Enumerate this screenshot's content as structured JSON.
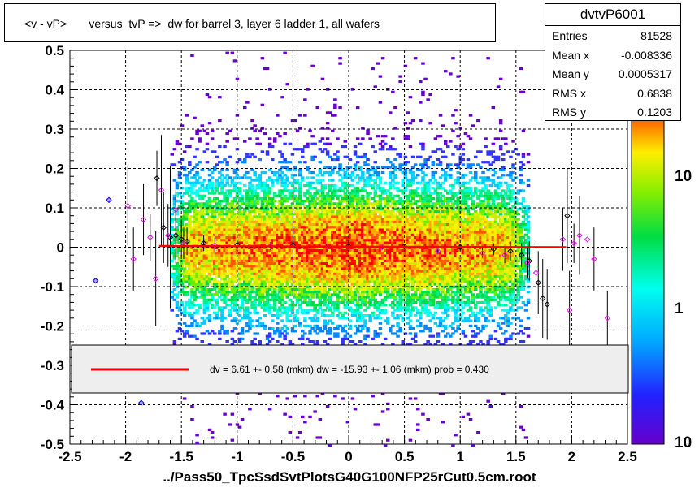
{
  "title": "<v - vP>       versus  tvP =>  dw for barrel 3, layer 6 ladder 1, all wafers",
  "stats": {
    "name": "dvtvP6001",
    "rows": [
      {
        "label": "Entries",
        "value": "81528"
      },
      {
        "label": "Mean x",
        "value": "-0.008336"
      },
      {
        "label": "Mean y",
        "value": "0.0005317"
      },
      {
        "label": "RMS x",
        "value": "0.6838"
      },
      {
        "label": "RMS y",
        "value": "0.1203"
      }
    ]
  },
  "fit_legend": "dv =    6.61 +-  0.58 (mkm) dw =  -15.93 +-  1.06 (mkm) prob = 0.430",
  "footer": "../Pass50_TpcSsdSvtPlotsG40G100NFP25rCut0.5cm.root",
  "chart_data": {
    "type": "heatmap",
    "xlim": [
      -2.5,
      2.5
    ],
    "ylim": [
      -0.5,
      0.5
    ],
    "x_ticks": [
      "-2.5",
      "-2",
      "-1.5",
      "-1",
      "-0.5",
      "0",
      "0.5",
      "1",
      "1.5",
      "2",
      "2.5"
    ],
    "y_ticks": [
      "-0.5",
      "-0.4",
      "-0.3",
      "-0.2",
      "-0.1",
      "0",
      "0.1",
      "0.2",
      "0.3",
      "0.4",
      "0.5"
    ],
    "grid": true,
    "color_scale": "log",
    "colorbar_labels": [
      "10",
      "1",
      "10"
    ],
    "fit_line": {
      "x": [
        -1.7,
        1.95
      ],
      "y": [
        0.003,
        0.0
      ],
      "color": "#ff0000"
    },
    "profile_black": [
      {
        "x": -1.72,
        "y": 0.175,
        "err": 0.07
      },
      {
        "x": -1.66,
        "y": 0.05,
        "err": 0.09
      },
      {
        "x": -1.6,
        "y": 0.025,
        "err": 0.18
      },
      {
        "x": -1.55,
        "y": 0.03,
        "err": 0.07
      },
      {
        "x": -1.5,
        "y": 0.02,
        "err": 0.05
      },
      {
        "x": -1.45,
        "y": 0.015,
        "err": 0.035
      },
      {
        "x": -1.3,
        "y": 0.01,
        "err": 0.02
      },
      {
        "x": -1.0,
        "y": 0.006,
        "err": 0.01
      },
      {
        "x": -0.5,
        "y": 0.005,
        "err": 0.006
      },
      {
        "x": 0.0,
        "y": 0.003,
        "err": 0.005
      },
      {
        "x": 0.5,
        "y": 0.002,
        "err": 0.006
      },
      {
        "x": 1.0,
        "y": 0.0,
        "err": 0.008
      },
      {
        "x": 1.3,
        "y": -0.005,
        "err": 0.015
      },
      {
        "x": 1.45,
        "y": -0.01,
        "err": 0.025
      },
      {
        "x": 1.55,
        "y": -0.02,
        "err": 0.03
      },
      {
        "x": 1.62,
        "y": -0.035,
        "err": 0.05
      },
      {
        "x": 1.7,
        "y": -0.09,
        "err": 0.08
      },
      {
        "x": 1.74,
        "y": -0.13,
        "err": 0.1
      },
      {
        "x": 1.78,
        "y": -0.145,
        "err": 0.09
      },
      {
        "x": 1.96,
        "y": 0.08,
        "err": 0.12
      }
    ],
    "profile_magenta": [
      {
        "x": -2.27,
        "y": -0.085,
        "err": 0.0
      },
      {
        "x": -2.15,
        "y": 0.12,
        "err": 0.0
      },
      {
        "x": -1.98,
        "y": 0.105,
        "err": 0.1
      },
      {
        "x": -1.93,
        "y": -0.03,
        "err": 0.08
      },
      {
        "x": -1.84,
        "y": 0.07,
        "err": 0.09
      },
      {
        "x": -1.78,
        "y": 0.025,
        "err": 0.06
      },
      {
        "x": -1.73,
        "y": -0.08,
        "err": 0.12
      },
      {
        "x": -1.68,
        "y": 0.145,
        "err": 0.14
      },
      {
        "x": -1.62,
        "y": 0.03,
        "err": 0.08
      },
      {
        "x": -1.55,
        "y": 0.095,
        "err": 0.05
      },
      {
        "x": -1.48,
        "y": 0.01,
        "err": 0.04
      },
      {
        "x": -1.2,
        "y": 0.005,
        "err": 0.02
      },
      {
        "x": -0.7,
        "y": 0.003,
        "err": 0.01
      },
      {
        "x": -0.2,
        "y": 0.002,
        "err": 0.006
      },
      {
        "x": 0.3,
        "y": 0.0,
        "err": 0.006
      },
      {
        "x": 0.8,
        "y": -0.01,
        "err": 0.008
      },
      {
        "x": 1.2,
        "y": -0.015,
        "err": 0.012
      },
      {
        "x": 1.4,
        "y": -0.02,
        "err": 0.02
      },
      {
        "x": 1.6,
        "y": -0.04,
        "err": 0.04
      },
      {
        "x": 1.68,
        "y": -0.065,
        "err": 0.07
      },
      {
        "x": 1.92,
        "y": 0.02,
        "err": 0.08
      },
      {
        "x": 1.98,
        "y": -0.16,
        "err": 0.1
      },
      {
        "x": 2.02,
        "y": 0.01,
        "err": 0.05
      },
      {
        "x": 2.07,
        "y": 0.03,
        "err": 0.1
      },
      {
        "x": 2.14,
        "y": 0.02,
        "err": 0.0
      },
      {
        "x": 2.2,
        "y": -0.03,
        "err": 0.08
      },
      {
        "x": 2.32,
        "y": -0.18,
        "err": 0.07
      }
    ],
    "outliers_blue": [
      {
        "x": -2.27,
        "y": -0.085
      },
      {
        "x": -2.15,
        "y": 0.12
      },
      {
        "x": -1.86,
        "y": -0.395
      }
    ]
  }
}
